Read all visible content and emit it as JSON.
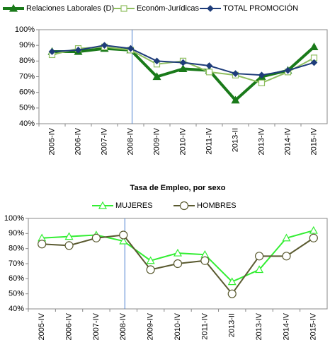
{
  "chart_data": [
    {
      "type": "line",
      "categories": [
        "2005-IV",
        "2006-IV",
        "2007-IV",
        "2008-IV",
        "2009-IV",
        "2010-IV",
        "2011-IV",
        "2013-II",
        "2013-IV",
        "2014-IV",
        "2015-IV"
      ],
      "series": [
        {
          "name": "Relaciones Laborales (D)",
          "color": "#1a7a1a",
          "marker": "triangle",
          "values": [
            86,
            86,
            88,
            87,
            70,
            75,
            74,
            55,
            70,
            74,
            89
          ]
        },
        {
          "name": "Económ-Jurídicas",
          "color": "#8fbf60",
          "marker": "square",
          "values": [
            84,
            88,
            89,
            87,
            78,
            80,
            73,
            71,
            66,
            73,
            82
          ]
        },
        {
          "name": "TOTAL PROMOCIÓN",
          "color": "#1f3d7a",
          "marker": "diamond",
          "values": [
            86,
            87,
            90,
            88,
            80,
            79,
            77,
            72,
            71,
            74,
            79
          ]
        }
      ],
      "ylim": [
        40,
        100
      ],
      "yticks": [
        {
          "value": 40,
          "label": "40%"
        },
        {
          "value": 50,
          "label": "50%"
        },
        {
          "value": 60,
          "label": "60%"
        },
        {
          "value": 70,
          "label": "70%"
        },
        {
          "value": 80,
          "label": "80%"
        },
        {
          "value": 90,
          "label": "90%"
        },
        {
          "value": 100,
          "label": "100%"
        }
      ],
      "grid": false
    },
    {
      "type": "line",
      "title": "Tasa de Empleo, por sexo",
      "categories": [
        "2005-IV",
        "2006-IV",
        "2007-IV",
        "2008-IV",
        "2009-IV",
        "2010-IV",
        "2011-IV",
        "2013-II",
        "2013-IV",
        "2014-IV",
        "2015-IV"
      ],
      "series": [
        {
          "name": "MUJERES",
          "color": "#33ee33",
          "marker": "triangle",
          "values": [
            87,
            88,
            89,
            85,
            72,
            77,
            76,
            58,
            66,
            87,
            92
          ]
        },
        {
          "name": "HOMBRES",
          "color": "#5a5a30",
          "marker": "circle",
          "values": [
            83,
            82,
            87,
            89,
            66,
            70,
            72,
            50,
            75,
            75,
            87
          ]
        }
      ],
      "ylim": [
        40,
        100
      ],
      "yticks": [
        {
          "value": 40,
          "label": "40%"
        },
        {
          "value": 50,
          "label": "50%"
        },
        {
          "value": 60,
          "label": "60%"
        },
        {
          "value": 70,
          "label": "70%"
        },
        {
          "value": 80,
          "label": "80%"
        },
        {
          "value": 90,
          "label": "90%"
        },
        {
          "value": 100,
          "label": "100%"
        }
      ],
      "grid": false
    }
  ]
}
